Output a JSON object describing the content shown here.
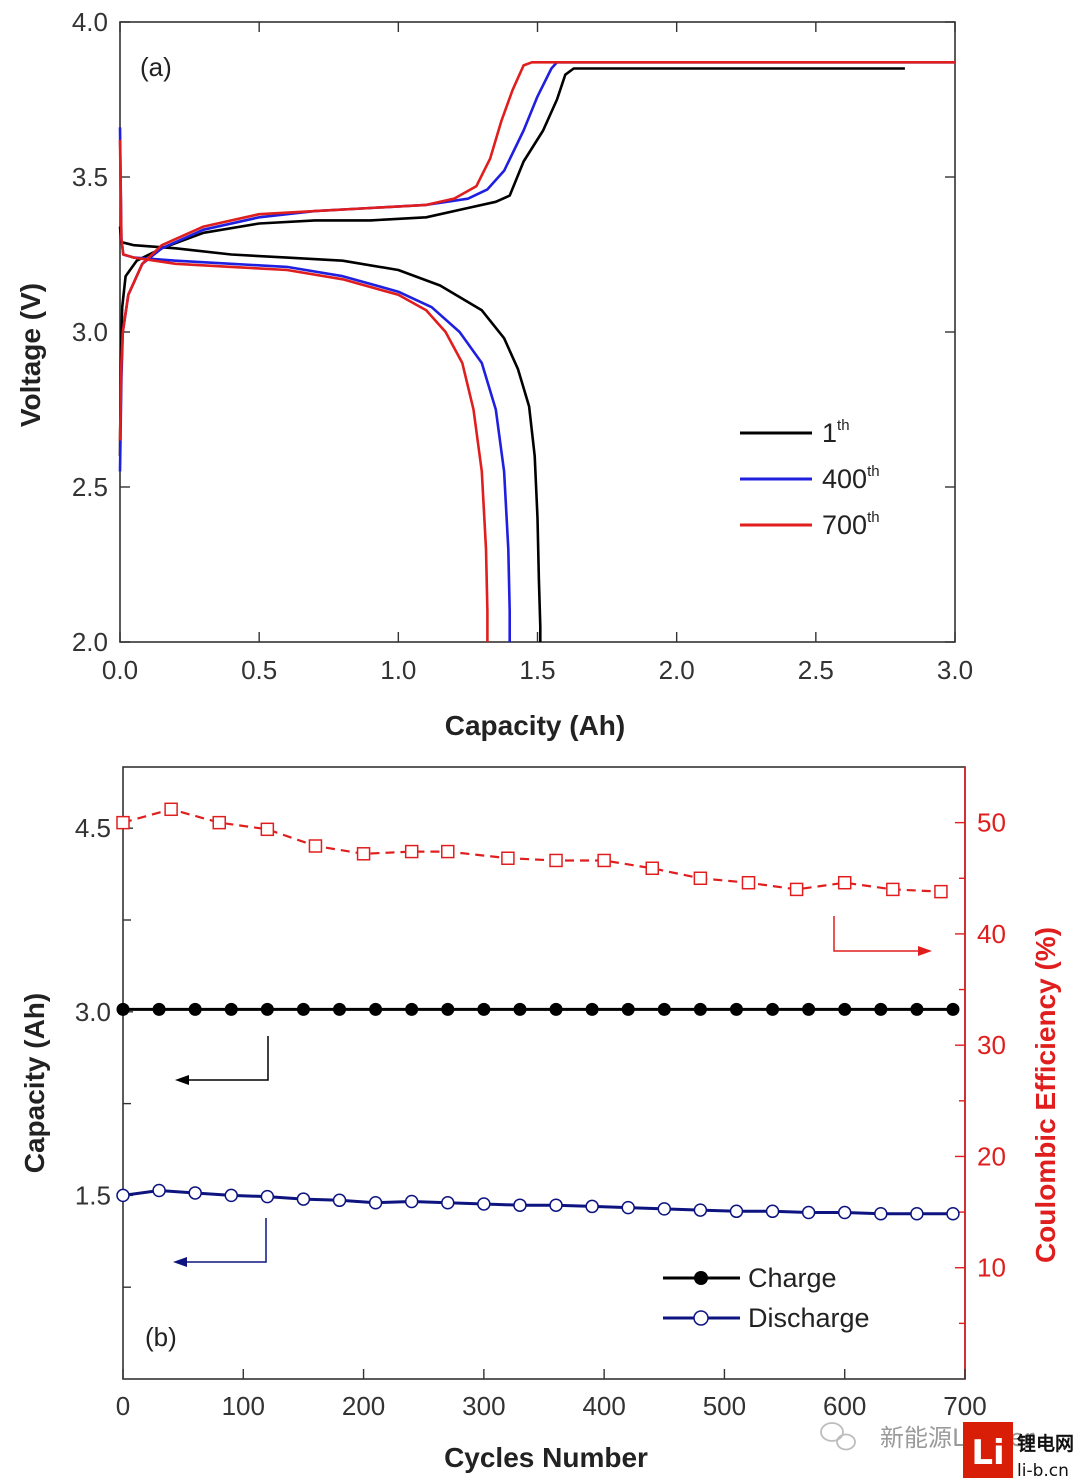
{
  "chart_data": [
    {
      "type": "line",
      "panel": "(a)",
      "xlabel": "Capacity (Ah)",
      "ylabel": "Voltage (V)",
      "xlim": [
        0,
        3.0
      ],
      "ylim": [
        2.0,
        4.0
      ],
      "xticks": [
        "0.0",
        "0.5",
        "1.0",
        "1.5",
        "2.0",
        "2.5",
        "3.0"
      ],
      "yticks": [
        "2.0",
        "2.5",
        "3.0",
        "3.5",
        "4.0"
      ],
      "legend": [
        {
          "base": "1",
          "sup": "th",
          "color": "#000000"
        },
        {
          "base": "400",
          "sup": "th",
          "color": "#1f1fe0"
        },
        {
          "base": "700",
          "sup": "th",
          "color": "#e01e1e"
        }
      ],
      "series": [
        {
          "name": "1th charge",
          "color": "#000000",
          "points": [
            [
              0,
              2.6
            ],
            [
              0.003,
              2.9
            ],
            [
              0.008,
              3.08
            ],
            [
              0.02,
              3.18
            ],
            [
              0.06,
              3.23
            ],
            [
              0.15,
              3.27
            ],
            [
              0.3,
              3.32
            ],
            [
              0.5,
              3.35
            ],
            [
              0.7,
              3.36
            ],
            [
              0.9,
              3.36
            ],
            [
              1.1,
              3.37
            ],
            [
              1.25,
              3.4
            ],
            [
              1.35,
              3.42
            ],
            [
              1.4,
              3.44
            ],
            [
              1.45,
              3.55
            ],
            [
              1.52,
              3.65
            ],
            [
              1.57,
              3.75
            ],
            [
              1.6,
              3.83
            ],
            [
              1.63,
              3.85
            ],
            [
              2.0,
              3.85
            ],
            [
              2.5,
              3.85
            ],
            [
              2.82,
              3.85
            ]
          ]
        },
        {
          "name": "1th discharge",
          "color": "#000000",
          "points": [
            [
              0,
              3.34
            ],
            [
              0.005,
              3.29
            ],
            [
              0.05,
              3.28
            ],
            [
              0.2,
              3.27
            ],
            [
              0.4,
              3.25
            ],
            [
              0.6,
              3.24
            ],
            [
              0.8,
              3.23
            ],
            [
              1.0,
              3.2
            ],
            [
              1.15,
              3.15
            ],
            [
              1.3,
              3.07
            ],
            [
              1.38,
              2.98
            ],
            [
              1.43,
              2.88
            ],
            [
              1.47,
              2.76
            ],
            [
              1.49,
              2.6
            ],
            [
              1.5,
              2.4
            ],
            [
              1.505,
              2.2
            ],
            [
              1.51,
              2.05
            ],
            [
              1.51,
              2.0
            ]
          ]
        },
        {
          "name": "400th charge",
          "color": "#1f1fe0",
          "points": [
            [
              0,
              2.55
            ],
            [
              0.005,
              2.85
            ],
            [
              0.01,
              3.0
            ],
            [
              0.03,
              3.12
            ],
            [
              0.08,
              3.22
            ],
            [
              0.15,
              3.27
            ],
            [
              0.3,
              3.33
            ],
            [
              0.5,
              3.37
            ],
            [
              0.7,
              3.39
            ],
            [
              0.9,
              3.4
            ],
            [
              1.1,
              3.41
            ],
            [
              1.25,
              3.43
            ],
            [
              1.32,
              3.46
            ],
            [
              1.38,
              3.52
            ],
            [
              1.45,
              3.65
            ],
            [
              1.5,
              3.76
            ],
            [
              1.55,
              3.85
            ],
            [
              1.57,
              3.87
            ],
            [
              2.0,
              3.87
            ],
            [
              2.5,
              3.87
            ],
            [
              3.0,
              3.87
            ]
          ]
        },
        {
          "name": "400th discharge",
          "color": "#1f1fe0",
          "points": [
            [
              0,
              3.66
            ],
            [
              0.005,
              3.3
            ],
            [
              0.012,
              3.25
            ],
            [
              0.05,
              3.24
            ],
            [
              0.2,
              3.23
            ],
            [
              0.4,
              3.22
            ],
            [
              0.6,
              3.21
            ],
            [
              0.8,
              3.18
            ],
            [
              1.0,
              3.13
            ],
            [
              1.12,
              3.08
            ],
            [
              1.22,
              3.0
            ],
            [
              1.3,
              2.9
            ],
            [
              1.35,
              2.75
            ],
            [
              1.38,
              2.55
            ],
            [
              1.395,
              2.3
            ],
            [
              1.4,
              2.1
            ],
            [
              1.4,
              2.0
            ]
          ]
        },
        {
          "name": "700th charge",
          "color": "#e01e1e",
          "points": [
            [
              0,
              2.65
            ],
            [
              0.005,
              2.9
            ],
            [
              0.01,
              3.0
            ],
            [
              0.03,
              3.12
            ],
            [
              0.08,
              3.22
            ],
            [
              0.15,
              3.28
            ],
            [
              0.3,
              3.34
            ],
            [
              0.5,
              3.38
            ],
            [
              0.7,
              3.39
            ],
            [
              0.9,
              3.4
            ],
            [
              1.1,
              3.41
            ],
            [
              1.2,
              3.43
            ],
            [
              1.28,
              3.47
            ],
            [
              1.33,
              3.56
            ],
            [
              1.37,
              3.68
            ],
            [
              1.41,
              3.78
            ],
            [
              1.45,
              3.86
            ],
            [
              1.48,
              3.87
            ],
            [
              2.0,
              3.87
            ],
            [
              2.5,
              3.87
            ],
            [
              3.0,
              3.87
            ]
          ]
        },
        {
          "name": "700th discharge",
          "color": "#e01e1e",
          "points": [
            [
              0,
              3.62
            ],
            [
              0.005,
              3.3
            ],
            [
              0.012,
              3.25
            ],
            [
              0.05,
              3.24
            ],
            [
              0.2,
              3.22
            ],
            [
              0.4,
              3.21
            ],
            [
              0.6,
              3.2
            ],
            [
              0.8,
              3.17
            ],
            [
              1.0,
              3.12
            ],
            [
              1.1,
              3.07
            ],
            [
              1.17,
              3.0
            ],
            [
              1.23,
              2.9
            ],
            [
              1.27,
              2.75
            ],
            [
              1.3,
              2.55
            ],
            [
              1.315,
              2.3
            ],
            [
              1.32,
              2.1
            ],
            [
              1.32,
              2.0
            ]
          ]
        }
      ]
    },
    {
      "type": "line",
      "panel": "(b)",
      "xlabel": "Cycles Number",
      "ylabel_left": "Capacity (Ah)",
      "ylabel_right": "Coulombic Efficiency (%)",
      "xlim": [
        0,
        700
      ],
      "ylim_left": [
        0,
        5.0
      ],
      "ylim_right": [
        0,
        55
      ],
      "xticks": [
        "0",
        "100",
        "200",
        "300",
        "400",
        "500",
        "600",
        "700"
      ],
      "yticks_left": [
        "1.5",
        "3.0",
        "4.5"
      ],
      "yticks_right": [
        "10",
        "20",
        "30",
        "40",
        "50"
      ],
      "legend": [
        {
          "label": "Charge",
          "color": "#000000",
          "marker": "filled-circle"
        },
        {
          "label": "Discharge",
          "color": "#0d1480",
          "marker": "open-circle"
        }
      ],
      "series": [
        {
          "name": "Charge",
          "axis": "left",
          "color": "#000000",
          "marker": "filled-circle",
          "x": [
            0,
            30,
            60,
            90,
            120,
            150,
            180,
            210,
            240,
            270,
            300,
            330,
            360,
            390,
            420,
            450,
            480,
            510,
            540,
            570,
            600,
            630,
            660,
            690
          ],
          "values": [
            3.02,
            3.02,
            3.02,
            3.02,
            3.02,
            3.02,
            3.02,
            3.02,
            3.02,
            3.02,
            3.02,
            3.02,
            3.02,
            3.02,
            3.02,
            3.02,
            3.02,
            3.02,
            3.02,
            3.02,
            3.02,
            3.02,
            3.02,
            3.02
          ]
        },
        {
          "name": "Discharge",
          "axis": "left",
          "color": "#0d1480",
          "marker": "open-circle",
          "x": [
            0,
            30,
            60,
            90,
            120,
            150,
            180,
            210,
            240,
            270,
            300,
            330,
            360,
            390,
            420,
            450,
            480,
            510,
            540,
            570,
            600,
            630,
            660,
            690
          ],
          "values": [
            1.5,
            1.54,
            1.52,
            1.5,
            1.49,
            1.47,
            1.46,
            1.44,
            1.45,
            1.44,
            1.43,
            1.42,
            1.42,
            1.41,
            1.4,
            1.39,
            1.38,
            1.37,
            1.37,
            1.36,
            1.36,
            1.35,
            1.35,
            1.35
          ]
        },
        {
          "name": "Coulombic Efficiency",
          "axis": "right",
          "color": "#e01e1e",
          "marker": "open-square",
          "style": "dashed",
          "x": [
            0,
            40,
            80,
            120,
            160,
            200,
            240,
            270,
            320,
            360,
            400,
            440,
            480,
            520,
            560,
            600,
            640,
            680
          ],
          "values": [
            50.0,
            51.2,
            50.0,
            49.4,
            47.9,
            47.2,
            47.4,
            47.4,
            46.8,
            46.6,
            46.6,
            45.9,
            45.0,
            44.6,
            44.0,
            44.6,
            44.0,
            43.8
          ]
        }
      ],
      "annotations": [
        {
          "type": "arrow",
          "text": "",
          "points_to": "right axis",
          "color": "#e01e1e"
        },
        {
          "type": "arrow",
          "text": "",
          "points_to": "left axis",
          "color": "#000000"
        },
        {
          "type": "arrow",
          "text": "",
          "points_to": "left axis",
          "color": "#0d1480"
        }
      ]
    }
  ],
  "watermark": {
    "brand_text": "新能源Leader",
    "logo_text": "Li",
    "site_title": "锂电网",
    "site_url": "li-b.cn"
  }
}
